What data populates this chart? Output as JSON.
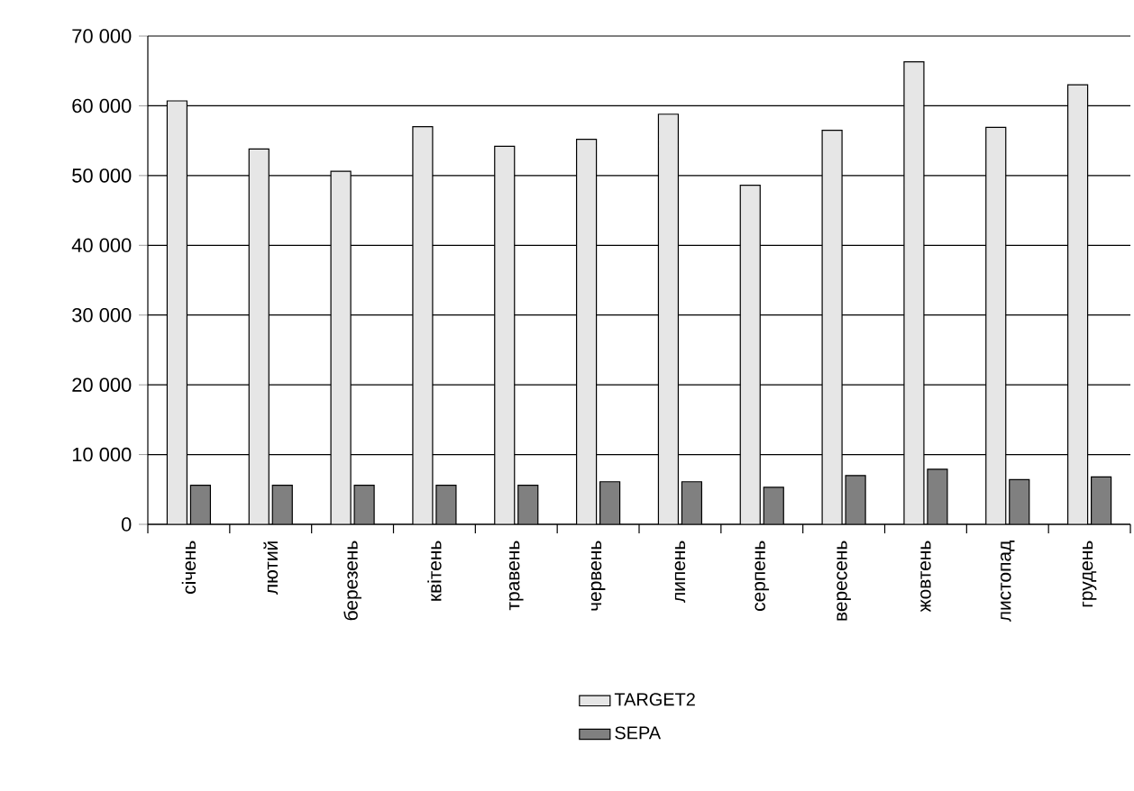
{
  "chart_data": {
    "type": "bar",
    "categories": [
      "січень",
      "лютий",
      "березень",
      "квітень",
      "травень",
      "червень",
      "липень",
      "серпень",
      "вересень",
      "жовтень",
      "листопад",
      "грудень"
    ],
    "series": [
      {
        "name": "TARGET2",
        "color": "#e6e6e6",
        "values": [
          60700,
          53800,
          50600,
          57000,
          54200,
          55200,
          58800,
          48600,
          56500,
          66300,
          56900,
          63000
        ]
      },
      {
        "name": "SEPA",
        "color": "#808080",
        "values": [
          5600,
          5600,
          5600,
          5600,
          5600,
          6100,
          6100,
          5300,
          7000,
          7900,
          6400,
          6800
        ]
      }
    ],
    "ylim": [
      0,
      70000
    ],
    "yticks": [
      {
        "value": 0,
        "label": "0"
      },
      {
        "value": 10000,
        "label": "10 000"
      },
      {
        "value": 20000,
        "label": "20 000"
      },
      {
        "value": 30000,
        "label": "30 000"
      },
      {
        "value": 40000,
        "label": "40 000"
      },
      {
        "value": 50000,
        "label": "50 000"
      },
      {
        "value": 60000,
        "label": "60 000"
      },
      {
        "value": 70000,
        "label": "70 000"
      }
    ],
    "grid": "y",
    "legend": "bottom"
  }
}
